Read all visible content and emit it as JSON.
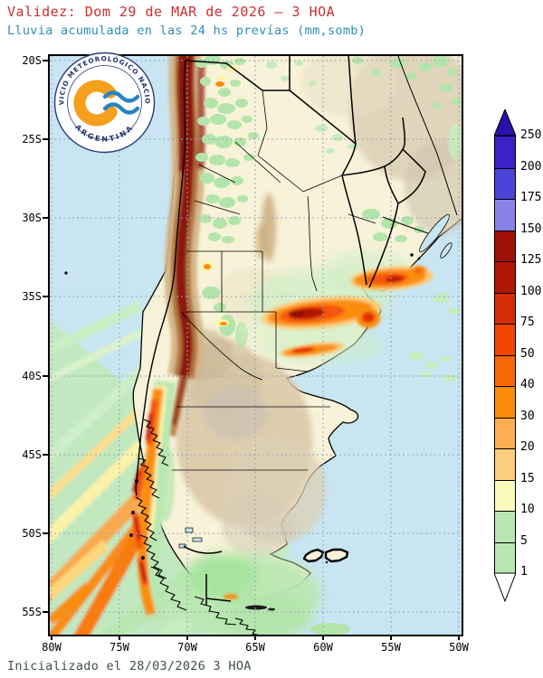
{
  "header": {
    "title": "Validez: Dom 29 de MAR de 2026 — 3 HOA",
    "subtitle": "Lluvia acumulada en las 24 hs prevías (mm,somb)"
  },
  "footer": {
    "initialized": "Inicializado el 28/03/2026 3 HOA"
  },
  "logo": {
    "text_top": "SERVICIO METEOROLÓGICO NACIONAL",
    "text_bottom": "ARGENTINA"
  },
  "map": {
    "lat_labels": [
      "20S",
      "25S",
      "30S",
      "35S",
      "40S",
      "45S",
      "50S",
      "55S"
    ],
    "lon_labels": [
      "80W",
      "75W",
      "70W",
      "65W",
      "60W",
      "55W",
      "50W"
    ]
  },
  "legend": {
    "unit": "mm",
    "labels": [
      "250",
      "200",
      "175",
      "150",
      "125",
      "100",
      "75",
      "50",
      "40",
      "30",
      "20",
      "15",
      "10",
      "5",
      "1"
    ],
    "segment_colors": [
      "#3a22c8",
      "#4b42d8",
      "#8a82e8",
      "#9e0f06",
      "#b01505",
      "#d32d05",
      "#f24605",
      "#f96807",
      "#fb8b0a",
      "#fdad52",
      "#fccd7d",
      "#fcfabc",
      "#b9e7b1",
      "#b9e7b1"
    ],
    "above_max_color": "#2c10aa",
    "below_min_color": "#ffffff"
  },
  "colors": {
    "title_text": "#cb2f2f",
    "subtitle_text": "#2e8fb5",
    "footer_text": "#3e4f49",
    "ocean": "#c9e5f2",
    "land": "#f7f2d8",
    "terrain_tan": "#d9c9a9",
    "andes_maroon": "#8d1710",
    "rain_green": "#b9e7b1",
    "rain_yellow": "#fcfabc",
    "rain_orange": "#fb8b0a",
    "rain_red": "#e22f06",
    "grid": "#9aa6b8",
    "frame": "#000000"
  }
}
